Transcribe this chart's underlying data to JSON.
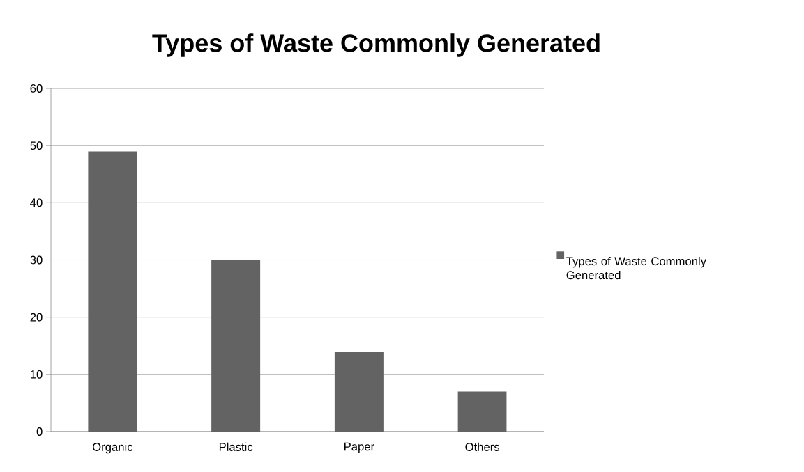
{
  "chart_data": {
    "type": "bar",
    "title": "Types of Waste Commonly Generated",
    "categories": [
      "Organic",
      "Plastic",
      "Paper",
      "Others"
    ],
    "series": [
      {
        "name": "Types of Waste Commonly Generated",
        "color": "#636363",
        "values": [
          49,
          30,
          14,
          7
        ]
      }
    ],
    "ylim": [
      0,
      60
    ],
    "yticks": [
      0,
      10,
      20,
      30,
      40,
      50,
      60
    ],
    "grid": "y",
    "legend": "right"
  }
}
